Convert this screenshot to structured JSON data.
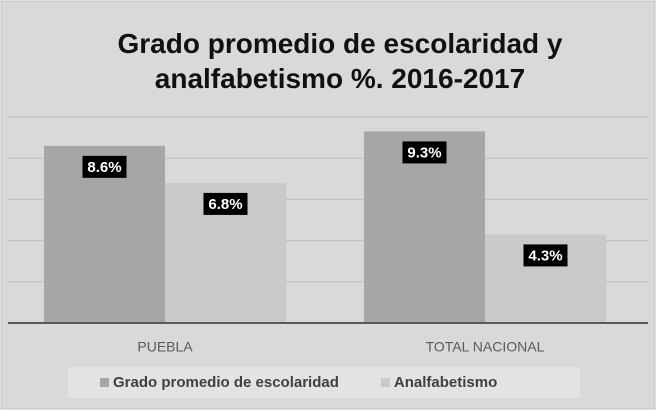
{
  "chart_data": {
    "type": "bar",
    "title": "Grado promedio de escolaridad y analfabetismo %. 2016-2017",
    "categories": [
      "PUEBLA",
      "TOTAL NACIONAL"
    ],
    "series": [
      {
        "name": "Grado promedio de escolaridad",
        "color": "#a6a6a6",
        "values": [
          8.6,
          9.3
        ],
        "value_labels": [
          "8.6%",
          "9.3%"
        ]
      },
      {
        "name": "Analfabetismo",
        "color": "#c9c9c9",
        "values": [
          6.8,
          4.3
        ],
        "value_labels": [
          "6.8%",
          "4.3%"
        ]
      }
    ],
    "ylim": [
      0,
      10
    ],
    "yticks": [
      0,
      2,
      4,
      6,
      8,
      10
    ],
    "grid": true,
    "legend": "bottom"
  }
}
